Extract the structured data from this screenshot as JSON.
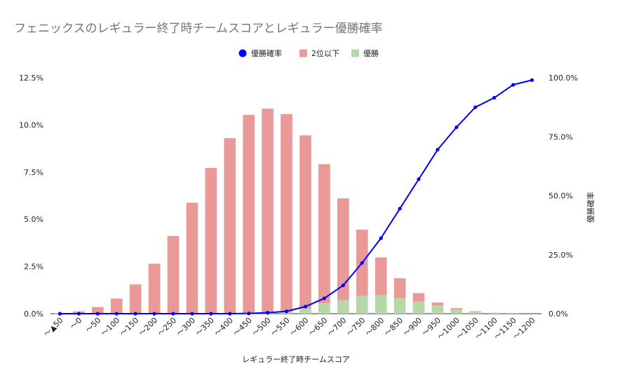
{
  "chart_data": {
    "type": "bar",
    "stacked": true,
    "title": "フェニックスのレギュラー終了時チームスコアとレギュラー優勝確率",
    "xlabel": "レギュラー終了時チームスコア",
    "ylabel": "",
    "ylabel_right": "優勝確率",
    "ylim": [
      0,
      12.5
    ],
    "ylim_right": [
      0,
      100
    ],
    "y_ticks": [
      "0.0%",
      "2.5%",
      "5.0%",
      "7.5%",
      "10.0%",
      "12.5%"
    ],
    "y_right_ticks": [
      "0.0%",
      "25.0%",
      "50.0%",
      "75.0%",
      "100.0%"
    ],
    "grid": false,
    "legend_position": "top",
    "categories": [
      "～▲50",
      "～0",
      "～50",
      "～100",
      "～150",
      "～200",
      "～250",
      "～300",
      "～350",
      "～400",
      "～450",
      "～500",
      "～550",
      "～600",
      "～650",
      "～700",
      "～750",
      "～800",
      "～850",
      "～900",
      "～950",
      "～1000",
      "～1050",
      "～1100",
      "～1150",
      "～1200"
    ],
    "series": [
      {
        "name": "2位以下",
        "type": "bar",
        "axis": "left",
        "color": "#ea9999",
        "values": [
          0.02,
          0.12,
          0.35,
          0.8,
          1.55,
          2.65,
          4.12,
          5.88,
          7.72,
          9.3,
          10.52,
          10.82,
          10.5,
          9.15,
          7.37,
          5.38,
          3.5,
          2.0,
          1.05,
          0.45,
          0.16,
          0.06,
          0.02,
          0.01,
          0,
          0
        ]
      },
      {
        "name": "優勝",
        "type": "bar",
        "axis": "left",
        "color": "#b6d7a8",
        "values": [
          0,
          0,
          0,
          0,
          0,
          0,
          0,
          0,
          0,
          0,
          0.01,
          0.04,
          0.08,
          0.3,
          0.55,
          0.73,
          0.95,
          0.98,
          0.83,
          0.64,
          0.43,
          0.24,
          0.11,
          0.04,
          0.01,
          0
        ]
      },
      {
        "name": "優勝確率",
        "type": "line",
        "axis": "right",
        "color": "#0000ff",
        "values": [
          0,
          0,
          0,
          0,
          0,
          0,
          0,
          0,
          0,
          0,
          0.1,
          0.4,
          1,
          3,
          6.5,
          12,
          21.5,
          32,
          44.5,
          57,
          69.5,
          79,
          87.5,
          91.5,
          97,
          99
        ]
      }
    ]
  }
}
